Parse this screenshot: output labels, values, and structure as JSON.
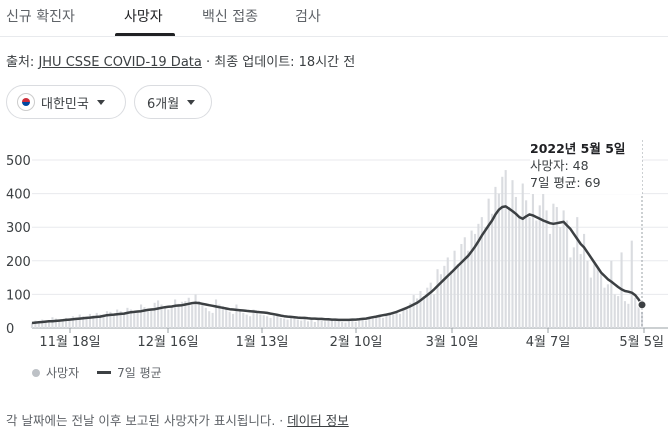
{
  "tabs": [
    {
      "label": "신규 확진자"
    },
    {
      "label": "사망자"
    },
    {
      "label": "백신 접종"
    },
    {
      "label": "검사"
    }
  ],
  "source": {
    "prefix": "출처: ",
    "link": "JHU CSSE COVID-19 Data",
    "updated": " · 최종 업데이트: 18시간 전"
  },
  "filters": {
    "country": "대한민국",
    "period": "6개월"
  },
  "tooltip": {
    "date": "2022년 5월 5일",
    "deaths": "사망자: 48",
    "avg": "7일 평균: 69"
  },
  "legend": {
    "bars": "사망자",
    "line": "7일 평균"
  },
  "footer": {
    "note": "각 날짜에는 전날 이후 보고된 사망자가 표시됩니다.",
    "sep": " · ",
    "link": "데이터 정보"
  },
  "chart_data": {
    "type": "bar",
    "x_ticks": [
      "11월 18일",
      "12월 16일",
      "1월 13일",
      "2월 10일",
      "3월 10일",
      "4월 7일",
      "5월 5일"
    ],
    "y_ticks": [
      0,
      100,
      200,
      300,
      400,
      500
    ],
    "ylim": [
      0,
      500
    ],
    "series": [
      {
        "name": "사망자",
        "type": "bar",
        "values": [
          15,
          22,
          18,
          25,
          20,
          17,
          32,
          28,
          22,
          25,
          30,
          24,
          35,
          28,
          40,
          35,
          30,
          42,
          38,
          45,
          40,
          35,
          50,
          48,
          42,
          55,
          50,
          45,
          60,
          55,
          48,
          52,
          70,
          62,
          50,
          58,
          75,
          82,
          70,
          60,
          55,
          65,
          85,
          72,
          78,
          80,
          90,
          68,
          100,
          80,
          72,
          60,
          50,
          45,
          85,
          70,
          65,
          58,
          48,
          42,
          70,
          50,
          45,
          40,
          35,
          55,
          48,
          40,
          38,
          35,
          30,
          42,
          38,
          30,
          28,
          25,
          30,
          28,
          25,
          22,
          28,
          20,
          25,
          18,
          30,
          22,
          20,
          28,
          25,
          22,
          20,
          18,
          16,
          20,
          22,
          18,
          25,
          30,
          22,
          28,
          35,
          32,
          40,
          30,
          38,
          45,
          40,
          50,
          42,
          60,
          55,
          75,
          98,
          88,
          110,
          95,
          120,
          135,
          100,
          175,
          160,
          185,
          210,
          170,
          230,
          190,
          250,
          270,
          230,
          290,
          280,
          310,
          330,
          300,
          385,
          340,
          420,
          400,
          450,
          470,
          360,
          440,
          390,
          335,
          430,
          380,
          330,
          440,
          320,
          365,
          410,
          350,
          280,
          370,
          360,
          300,
          350,
          320,
          210,
          240,
          330,
          220,
          280,
          200,
          150,
          190,
          180,
          160,
          120,
          130,
          200,
          100,
          95,
          225,
          80,
          72,
          260,
          90,
          70,
          48
        ]
      },
      {
        "name": "7일 평균",
        "type": "line",
        "values": [
          15,
          16,
          17,
          18,
          19,
          20,
          20,
          21,
          22,
          23,
          24,
          25,
          26,
          27,
          28,
          29,
          30,
          31,
          32,
          33,
          34,
          36,
          38,
          39,
          40,
          41,
          42,
          43,
          45,
          47,
          48,
          49,
          50,
          52,
          54,
          55,
          56,
          58,
          60,
          62,
          63,
          64,
          66,
          67,
          68,
          70,
          72,
          74,
          75,
          74,
          72,
          70,
          68,
          66,
          64,
          62,
          60,
          58,
          56,
          55,
          54,
          53,
          52,
          51,
          50,
          49,
          48,
          47,
          46,
          45,
          43,
          41,
          39,
          37,
          35,
          34,
          33,
          32,
          31,
          30,
          30,
          29,
          28,
          28,
          27,
          27,
          26,
          26,
          25,
          25,
          24,
          24,
          24,
          24,
          25,
          25,
          26,
          27,
          28,
          30,
          32,
          34,
          36,
          38,
          40,
          42,
          45,
          48,
          52,
          56,
          60,
          65,
          70,
          75,
          82,
          90,
          98,
          106,
          115,
          125,
          135,
          145,
          155,
          165,
          175,
          185,
          195,
          205,
          215,
          228,
          242,
          258,
          275,
          290,
          305,
          320,
          338,
          352,
          360,
          362,
          355,
          348,
          340,
          330,
          325,
          332,
          338,
          335,
          330,
          325,
          320,
          316,
          312,
          310,
          312,
          314,
          316,
          305,
          295,
          280,
          265,
          250,
          240,
          225,
          210,
          195,
          180,
          165,
          155,
          145,
          138,
          130,
          122,
          115,
          110,
          108,
          105,
          98,
          85,
          69
        ]
      }
    ]
  }
}
